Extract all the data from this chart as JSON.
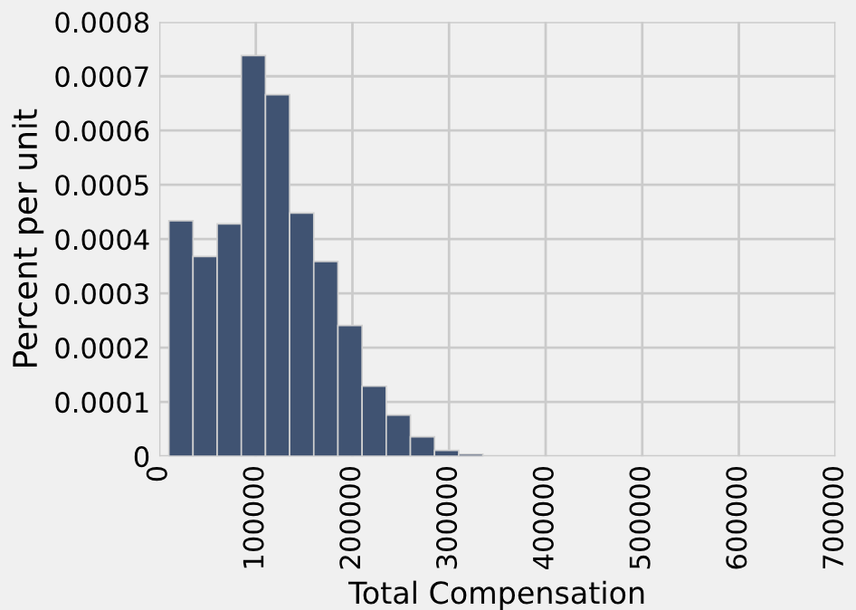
{
  "chart_data": {
    "type": "histogram",
    "xlabel": "Total Compensation",
    "ylabel": "Percent per unit",
    "bins": [
      10000,
      35000,
      60000,
      85000,
      110000,
      135000,
      160000,
      185000,
      210000,
      235000,
      260000,
      285000,
      310000,
      335000
    ],
    "values": [
      0.000434,
      0.000368,
      0.000428,
      0.000738,
      0.000666,
      0.000448,
      0.000359,
      0.000241,
      0.000129,
      7.6e-05,
      3.6e-05,
      1.1e-05,
      4e-06
    ],
    "color": "#405372",
    "xlim": [
      0,
      700000
    ],
    "xticks": [
      0,
      100000,
      200000,
      300000,
      400000,
      500000,
      600000,
      700000
    ],
    "ylim": [
      0,
      0.0008
    ],
    "yticks": [
      0,
      0.0001,
      0.0002,
      0.0003,
      0.0004,
      0.0005,
      0.0006,
      0.0007,
      0.0008
    ],
    "grid": true
  }
}
